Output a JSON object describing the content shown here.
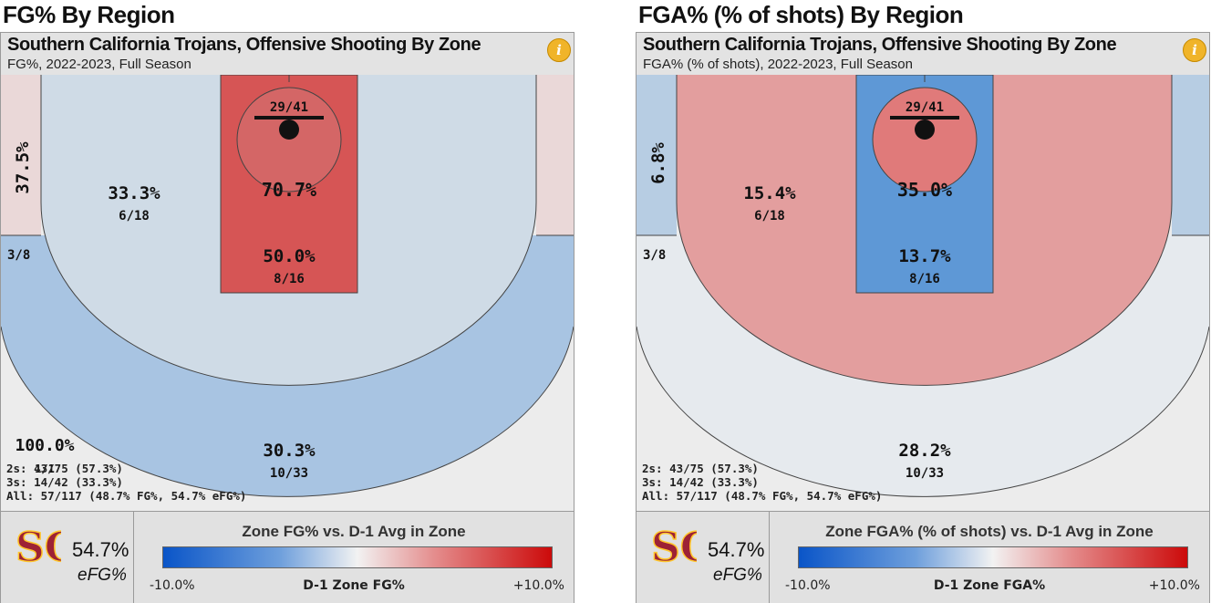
{
  "chart_data": [
    {
      "type": "court-heatmap",
      "title": "FG% By Region",
      "header": "Southern California Trojans, Offensive Shooting By Zone",
      "subtitle": "FG%, 2022-2023, Full Season",
      "zones": [
        {
          "zone": "left-corner-3",
          "value": "37.5%",
          "count": "3/8",
          "color": "#ead8d8"
        },
        {
          "zone": "right-corner-3",
          "value": "",
          "count": "",
          "color": "#ead8d8"
        },
        {
          "zone": "mid-range",
          "value": "33.3%",
          "count": "6/18",
          "color": "#cfdbe6"
        },
        {
          "zone": "paint",
          "value": "50.0%",
          "count": "8/16",
          "color": "#d65555"
        },
        {
          "zone": "rim",
          "value": "70.7%",
          "count": "29/41",
          "color": "#d46666"
        },
        {
          "zone": "above-break-3",
          "value": "30.3%",
          "count": "10/33",
          "color": "#a8c4e2"
        },
        {
          "zone": "long-range",
          "value": "100.0%",
          "count": "1/1",
          "color": "#ececec"
        }
      ],
      "stats": [
        "2s: 43/75 (57.3%)",
        "3s: 14/42 (33.3%)",
        "All: 57/117 (48.7% FG%, 54.7% eFG%)"
      ],
      "efg": {
        "value": "54.7%",
        "label": "eFG%"
      },
      "legend": {
        "title": "Zone FG% vs. D-1 Avg in Zone",
        "min": "-10.0%",
        "mid": "D-1 Zone FG%",
        "max": "+10.0%"
      }
    },
    {
      "type": "court-heatmap",
      "title": "FGA% (% of shots) By Region",
      "header": "Southern California Trojans, Offensive Shooting By Zone",
      "subtitle": "FGA% (% of shots), 2022-2023, Full Season",
      "zones": [
        {
          "zone": "left-corner-3",
          "value": "6.8%",
          "count": "3/8",
          "color": "#b7cde3"
        },
        {
          "zone": "right-corner-3",
          "value": "",
          "count": "",
          "color": "#b7cde3"
        },
        {
          "zone": "mid-range",
          "value": "15.4%",
          "count": "6/18",
          "color": "#e39e9e"
        },
        {
          "zone": "paint",
          "value": "13.7%",
          "count": "8/16",
          "color": "#5e98d6"
        },
        {
          "zone": "rim",
          "value": "35.0%",
          "count": "29/41",
          "color": "#e07a7a"
        },
        {
          "zone": "above-break-3",
          "value": "28.2%",
          "count": "10/33",
          "color": "#e6eaee"
        },
        {
          "zone": "long-range",
          "value": "",
          "count": "",
          "color": "#ececec"
        }
      ],
      "stats": [
        "2s: 43/75 (57.3%)",
        "3s: 14/42 (33.3%)",
        "All: 57/117 (48.7% FG%, 54.7% eFG%)"
      ],
      "efg": {
        "value": "54.7%",
        "label": "eFG%"
      },
      "legend": {
        "title": "Zone FGA% (% of shots) vs. D-1 Avg in Zone",
        "min": "-10.0%",
        "mid": "D-1 Zone FGA%",
        "max": "+10.0%"
      }
    }
  ],
  "ui": {
    "info_glyph": "i",
    "logo_text": "SC",
    "logo_color": "#9d2235",
    "logo_accent": "#ffc72c"
  }
}
